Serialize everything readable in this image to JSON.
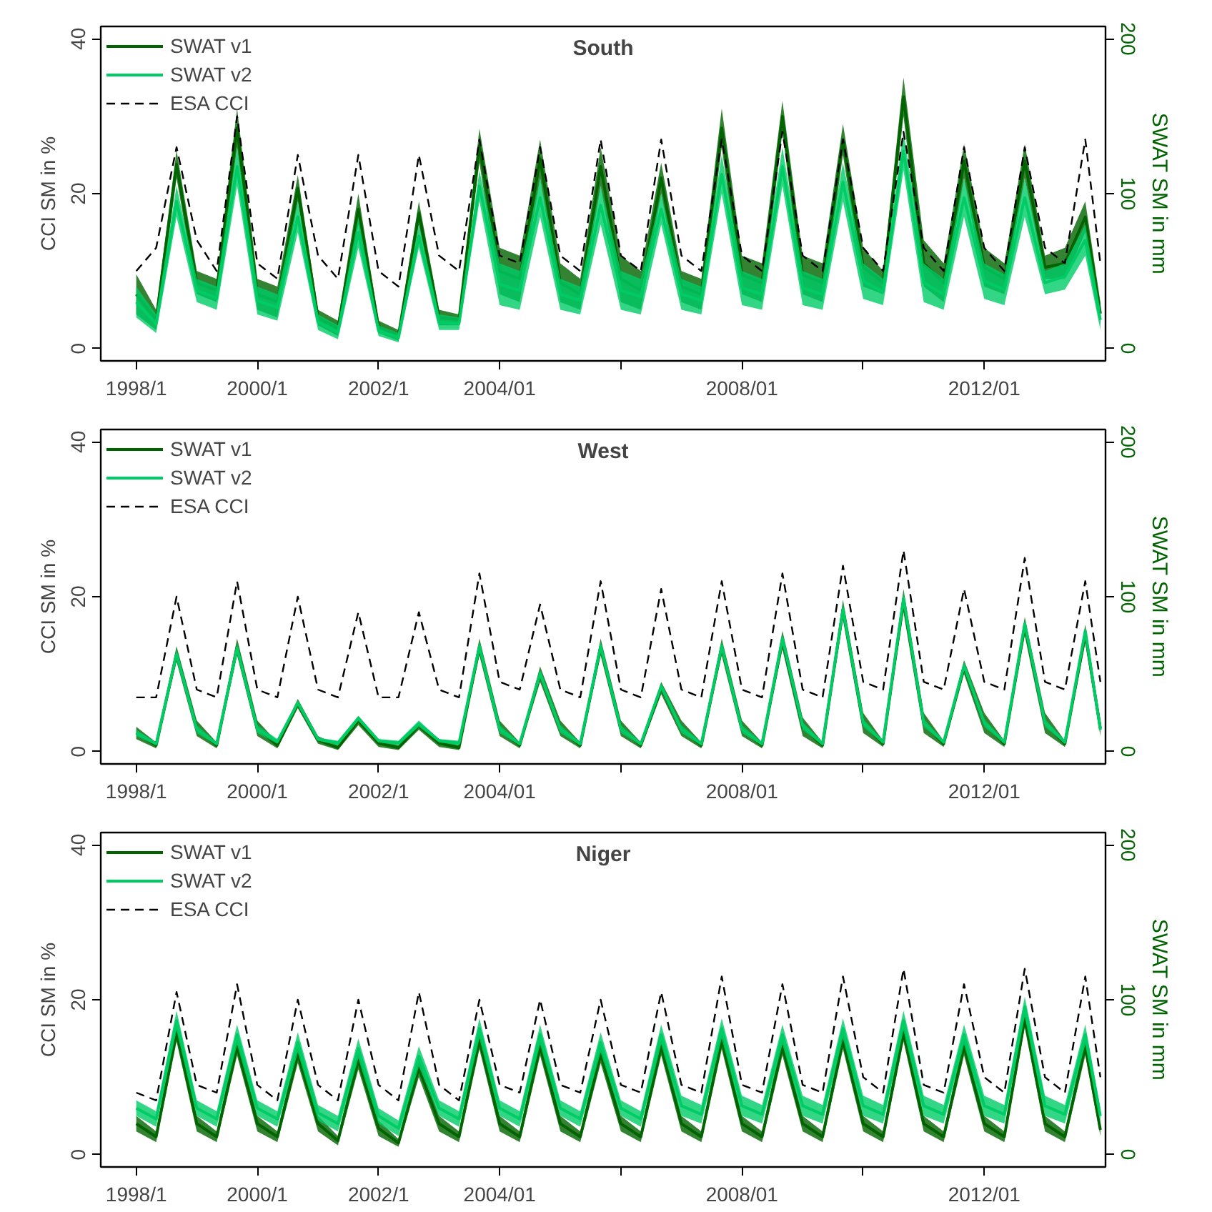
{
  "chart_data": [
    {
      "type": "line",
      "title": "South",
      "ylabel": "CCI SM in %",
      "y2label": "SWAT SM in mm",
      "x": [
        "1998-01",
        "1998-05",
        "1998-09",
        "1999-01",
        "1999-05",
        "1999-09",
        "2000-01",
        "2000-05",
        "2000-09",
        "2001-01",
        "2001-05",
        "2001-09",
        "2002-01",
        "2002-05",
        "2002-09",
        "2003-01",
        "2003-05",
        "2003-09",
        "2004-01",
        "2004-05",
        "2004-09",
        "2005-01",
        "2005-05",
        "2005-09",
        "2006-01",
        "2006-05",
        "2006-09",
        "2007-01",
        "2007-05",
        "2007-09",
        "2008-01",
        "2008-05",
        "2008-09",
        "2009-01",
        "2009-05",
        "2009-09",
        "2010-01",
        "2010-05",
        "2010-09",
        "2011-01",
        "2011-05",
        "2011-09",
        "2012-01",
        "2012-05",
        "2012-09",
        "2013-01",
        "2013-05",
        "2013-09",
        "2013-12"
      ],
      "xlim": [
        "1997-06",
        "2014-01"
      ],
      "xticks": [
        {
          "value": "1998-01",
          "label": "1998/1"
        },
        {
          "value": "2000-01",
          "label": "2000/1"
        },
        {
          "value": "2002-01",
          "label": "2002/1"
        },
        {
          "value": "2004-01",
          "label": "2004/01"
        },
        {
          "value": "2006-01",
          "label": null
        },
        {
          "value": "2008-01",
          "label": "2008/01"
        },
        {
          "value": "2010-01",
          "label": null
        },
        {
          "value": "2012-01",
          "label": "2012/01"
        }
      ],
      "ylim": [
        -1.6,
        41.6
      ],
      "yticks": [
        0,
        20,
        40
      ],
      "y2lim": [
        -8,
        208
      ],
      "y2ticks": [
        0,
        100,
        200
      ],
      "legend": "top left",
      "grid": false,
      "series": [
        {
          "name": "SWAT v1",
          "color": "#006400",
          "axis": "y2",
          "line_style": "solid",
          "values": [
            35,
            18.5,
            119,
            42.5,
            37.5,
            142.5,
            35,
            30,
            103.5,
            20,
            13,
            90,
            14,
            8.5,
            87.5,
            20,
            18.5,
            131,
            50,
            45,
            122.5,
            42.5,
            35,
            117.5,
            45,
            37.5,
            110,
            40,
            35,
            142.5,
            47.5,
            42.5,
            150,
            47.5,
            42.5,
            135,
            52.5,
            42.5,
            162.5,
            55,
            42.5,
            121,
            52.5,
            45,
            121,
            52.5,
            55,
            85,
            22.5
          ],
          "lower": [
            22,
            12,
            110,
            35,
            30,
            130,
            25,
            20,
            95,
            15,
            8,
            80,
            10,
            5,
            80,
            15,
            15,
            120,
            35,
            30,
            110,
            30,
            25,
            105,
            30,
            25,
            100,
            30,
            25,
            130,
            35,
            30,
            140,
            35,
            30,
            125,
            40,
            35,
            150,
            40,
            30,
            110,
            40,
            35,
            110,
            45,
            45,
            75,
            15
          ],
          "upper": [
            48,
            25,
            128,
            50,
            45,
            155,
            45,
            40,
            112,
            25,
            18,
            100,
            18,
            12,
            95,
            25,
            22,
            142,
            65,
            60,
            135,
            55,
            45,
            130,
            60,
            50,
            120,
            50,
            45,
            155,
            60,
            55,
            160,
            60,
            55,
            145,
            65,
            50,
            175,
            70,
            55,
            132,
            65,
            55,
            132,
            60,
            65,
            95,
            30
          ]
        },
        {
          "name": "SWAT v2",
          "color": "#00cc66",
          "axis": "y2",
          "line_style": "solid",
          "values": [
            30,
            16,
            95,
            37.5,
            32.5,
            117.5,
            31,
            26.5,
            85,
            17,
            10.5,
            75,
            11.5,
            7,
            72.5,
            17,
            16,
            105,
            41.5,
            37.5,
            97.5,
            35,
            31,
            92.5,
            37.5,
            33.5,
            90,
            35,
            31,
            112.5,
            39,
            35,
            117.5,
            39,
            35,
            107.5,
            43.5,
            36.5,
            127.5,
            42.5,
            35,
            97.5,
            43.5,
            38,
            97.5,
            42.5,
            46.5,
            70,
            18.5
          ],
          "lower": [
            20,
            10,
            85,
            30,
            25,
            105,
            22,
            18,
            75,
            12,
            6,
            65,
            8,
            4,
            65,
            12,
            12,
            95,
            28,
            25,
            85,
            25,
            22,
            80,
            25,
            22,
            80,
            25,
            22,
            100,
            28,
            25,
            105,
            28,
            25,
            95,
            32,
            28,
            115,
            30,
            25,
            85,
            32,
            28,
            85,
            35,
            38,
            60,
            12
          ],
          "upper": [
            40,
            22,
            105,
            45,
            40,
            130,
            40,
            35,
            95,
            22,
            15,
            85,
            15,
            10,
            80,
            22,
            20,
            115,
            55,
            50,
            110,
            45,
            40,
            105,
            50,
            45,
            100,
            45,
            40,
            125,
            50,
            45,
            130,
            50,
            45,
            120,
            55,
            45,
            140,
            55,
            45,
            110,
            55,
            48,
            110,
            50,
            55,
            80,
            25
          ]
        },
        {
          "name": "ESA CCI",
          "color": "#000000",
          "line_style": "dashed",
          "values": [
            10,
            13,
            26,
            14,
            10,
            30,
            11,
            9,
            25,
            12,
            9,
            25,
            10,
            8,
            25,
            12,
            10,
            27,
            12,
            11,
            26,
            12,
            10,
            27,
            12,
            10,
            27,
            12,
            10,
            27,
            12,
            10,
            28,
            12,
            10,
            27,
            13,
            10,
            28,
            13,
            10,
            26,
            13,
            10,
            26,
            13,
            11,
            27,
            11
          ]
        }
      ]
    },
    {
      "type": "line",
      "title": "West",
      "ylabel": "CCI SM in %",
      "y2label": "SWAT SM in mm",
      "x": [
        "1998-01",
        "1998-05",
        "1998-09",
        "1999-01",
        "1999-05",
        "1999-09",
        "2000-01",
        "2000-05",
        "2000-09",
        "2001-01",
        "2001-05",
        "2001-09",
        "2002-01",
        "2002-05",
        "2002-09",
        "2003-01",
        "2003-05",
        "2003-09",
        "2004-01",
        "2004-05",
        "2004-09",
        "2005-01",
        "2005-05",
        "2005-09",
        "2006-01",
        "2006-05",
        "2006-09",
        "2007-01",
        "2007-05",
        "2007-09",
        "2008-01",
        "2008-05",
        "2008-09",
        "2009-01",
        "2009-05",
        "2009-09",
        "2010-01",
        "2010-05",
        "2010-09",
        "2011-01",
        "2011-05",
        "2011-09",
        "2012-01",
        "2012-05",
        "2012-09",
        "2013-01",
        "2013-05",
        "2013-09",
        "2013-12"
      ],
      "xlim": [
        "1997-06",
        "2014-01"
      ],
      "xticks": [
        {
          "value": "1998-01",
          "label": "1998/1"
        },
        {
          "value": "2000-01",
          "label": "2000/1"
        },
        {
          "value": "2002-01",
          "label": "2002/1"
        },
        {
          "value": "2004-01",
          "label": "2004/01"
        },
        {
          "value": "2006-01",
          "label": null
        },
        {
          "value": "2008-01",
          "label": "2008/01"
        },
        {
          "value": "2010-01",
          "label": null
        },
        {
          "value": "2012-01",
          "label": "2012/01"
        }
      ],
      "ylim": [
        -1.6,
        41.6
      ],
      "yticks": [
        0,
        20,
        40
      ],
      "y2lim": [
        -8,
        208
      ],
      "y2ticks": [
        0,
        100,
        200
      ],
      "legend": "top left",
      "grid": false,
      "series": [
        {
          "name": "SWAT v1",
          "color": "#006400",
          "axis": "y2",
          "line_style": "solid",
          "values": [
            12,
            4,
            63,
            15,
            4,
            67.5,
            15,
            4,
            31,
            7.5,
            2.5,
            20,
            5.5,
            2.5,
            16.5,
            5.5,
            2.5,
            67.5,
            15,
            4,
            50,
            15,
            4,
            67.5,
            15,
            4,
            41,
            15,
            4,
            67.5,
            15,
            4,
            72,
            16,
            4,
            91.5,
            18.5,
            5,
            97.5,
            18.5,
            5,
            54.5,
            18.5,
            5,
            81,
            18.5,
            5,
            76,
            15
          ],
          "lower": [
            8,
            2,
            58,
            10,
            2,
            62,
            10,
            2,
            28,
            5,
            1,
            17,
            3,
            1,
            14,
            3,
            1,
            62,
            10,
            2,
            45,
            10,
            2,
            62,
            10,
            2,
            37,
            10,
            2,
            62,
            10,
            2,
            66,
            10,
            2,
            85,
            12,
            3,
            90,
            12,
            3,
            50,
            12,
            3,
            75,
            12,
            3,
            70,
            10
          ],
          "upper": [
            16,
            6,
            68,
            20,
            6,
            73,
            20,
            6,
            34,
            10,
            4,
            23,
            8,
            4,
            19,
            8,
            4,
            73,
            20,
            6,
            55,
            20,
            6,
            73,
            20,
            6,
            45,
            20,
            6,
            73,
            20,
            6,
            78,
            22,
            6,
            98,
            25,
            7,
            105,
            25,
            7,
            59,
            25,
            7,
            87,
            25,
            7,
            82,
            20
          ]
        },
        {
          "name": "SWAT v2",
          "color": "#00cc66",
          "axis": "y2",
          "line_style": "solid",
          "values": [
            12,
            5,
            63,
            14.5,
            5,
            67,
            14.5,
            6.5,
            31.5,
            8,
            5.5,
            21.5,
            7,
            5.5,
            18,
            7,
            5.5,
            68,
            14.5,
            5,
            50.5,
            14.5,
            5,
            68,
            14.5,
            5,
            42,
            14.5,
            5,
            68,
            14.5,
            5,
            73,
            16.5,
            5,
            92,
            18.5,
            6,
            99,
            18.5,
            6,
            55.5,
            18.5,
            6,
            82.5,
            18.5,
            6,
            78,
            14
          ],
          "lower": [
            10,
            4,
            60,
            12,
            4,
            64,
            12,
            5,
            30,
            7,
            4,
            20,
            6,
            4,
            16,
            6,
            4,
            65,
            12,
            4,
            48,
            12,
            4,
            65,
            12,
            4,
            40,
            12,
            4,
            65,
            12,
            4,
            70,
            14,
            4,
            88,
            16,
            5,
            95,
            16,
            5,
            53,
            16,
            5,
            80,
            16,
            5,
            76,
            12
          ],
          "upper": [
            14,
            6,
            66,
            17,
            6,
            70,
            17,
            8,
            33,
            9,
            7,
            23,
            8,
            7,
            20,
            8,
            7,
            71,
            17,
            6,
            53,
            17,
            6,
            71,
            17,
            6,
            44,
            17,
            6,
            71,
            17,
            6,
            76,
            19,
            6,
            96,
            21,
            7,
            103,
            21,
            7,
            58,
            21,
            7,
            85,
            21,
            7,
            80,
            16
          ]
        },
        {
          "name": "ESA CCI",
          "color": "#000000",
          "line_style": "dashed",
          "values": [
            7,
            7,
            20,
            8,
            7,
            22,
            8,
            7,
            20,
            8,
            7,
            18,
            7,
            7,
            18,
            8,
            7,
            23,
            9,
            8,
            19,
            8,
            7,
            22,
            8,
            7,
            21,
            8,
            7,
            22,
            8,
            7,
            23,
            8,
            7,
            24,
            9,
            8,
            26,
            9,
            8,
            21,
            9,
            8,
            25,
            9,
            8,
            22,
            9
          ]
        }
      ]
    },
    {
      "type": "line",
      "title": "Niger",
      "ylabel": "CCI SM in %",
      "y2label": "SWAT SM in mm",
      "x": [
        "1998-01",
        "1998-05",
        "1998-09",
        "1999-01",
        "1999-05",
        "1999-09",
        "2000-01",
        "2000-05",
        "2000-09",
        "2001-01",
        "2001-05",
        "2001-09",
        "2002-01",
        "2002-05",
        "2002-09",
        "2003-01",
        "2003-05",
        "2003-09",
        "2004-01",
        "2004-05",
        "2004-09",
        "2005-01",
        "2005-05",
        "2005-09",
        "2006-01",
        "2006-05",
        "2006-09",
        "2007-01",
        "2007-05",
        "2007-09",
        "2008-01",
        "2008-05",
        "2008-09",
        "2009-01",
        "2009-05",
        "2009-09",
        "2010-01",
        "2010-05",
        "2010-09",
        "2011-01",
        "2011-05",
        "2011-09",
        "2012-01",
        "2012-05",
        "2012-09",
        "2013-01",
        "2013-05",
        "2013-09",
        "2013-12"
      ],
      "xlim": [
        "1997-06",
        "2014-01"
      ],
      "xticks": [
        {
          "value": "1998-01",
          "label": "1998/1"
        },
        {
          "value": "2000-01",
          "label": "2000/1"
        },
        {
          "value": "2002-01",
          "label": "2002/1"
        },
        {
          "value": "2004-01",
          "label": "2004/01"
        },
        {
          "value": "2006-01",
          "label": null
        },
        {
          "value": "2008-01",
          "label": "2008/01"
        },
        {
          "value": "2010-01",
          "label": null
        },
        {
          "value": "2012-01",
          "label": "2012/01"
        }
      ],
      "ylim": [
        -1.6,
        41.6
      ],
      "yticks": [
        0,
        20,
        40
      ],
      "y2lim": [
        -8,
        208
      ],
      "y2ticks": [
        0,
        100,
        200
      ],
      "legend": "top left",
      "grid": false,
      "series": [
        {
          "name": "SWAT v1",
          "color": "#006400",
          "axis": "y2",
          "line_style": "solid",
          "values": [
            20,
            11.5,
            79,
            20,
            11.5,
            70,
            20,
            11.5,
            65,
            20,
            9,
            61,
            17,
            7.5,
            56,
            20,
            11.5,
            74,
            20,
            11.5,
            70,
            20,
            11.5,
            65,
            20,
            11.5,
            70,
            20,
            11.5,
            74,
            20,
            11.5,
            70,
            20,
            11.5,
            74,
            20,
            11.5,
            79,
            20,
            11.5,
            70,
            20,
            11.5,
            88,
            20,
            11.5,
            70,
            16
          ],
          "lower": [
            15,
            8,
            73,
            15,
            8,
            64,
            15,
            8,
            59,
            15,
            6,
            55,
            12,
            5,
            50,
            15,
            8,
            68,
            15,
            8,
            64,
            15,
            8,
            59,
            15,
            8,
            64,
            15,
            8,
            68,
            15,
            8,
            64,
            15,
            8,
            68,
            15,
            8,
            73,
            15,
            8,
            64,
            15,
            8,
            82,
            15,
            8,
            64,
            12
          ],
          "upper": [
            25,
            15,
            85,
            25,
            15,
            76,
            25,
            15,
            71,
            25,
            12,
            67,
            22,
            10,
            62,
            25,
            15,
            80,
            25,
            15,
            76,
            25,
            15,
            71,
            25,
            15,
            76,
            25,
            15,
            80,
            25,
            15,
            76,
            25,
            15,
            80,
            25,
            15,
            85,
            25,
            15,
            76,
            25,
            15,
            94,
            25,
            15,
            76,
            20
          ]
        },
        {
          "name": "SWAT v2",
          "color": "#00cc66",
          "axis": "y2",
          "line_style": "solid",
          "values": [
            30,
            23,
            86.5,
            30,
            23,
            77.5,
            30,
            23,
            72.5,
            27,
            20,
            68.5,
            25,
            17,
            63.5,
            30,
            23,
            81.5,
            30,
            23,
            77.5,
            30,
            23,
            72.5,
            30,
            23,
            77.5,
            31.5,
            26,
            81.5,
            31.5,
            26,
            77.5,
            31.5,
            26,
            81.5,
            31.5,
            26,
            86.5,
            31.5,
            26,
            77.5,
            31.5,
            26,
            95.5,
            31.5,
            26,
            77.5,
            25
          ],
          "lower": [
            25,
            18,
            80,
            25,
            18,
            71,
            25,
            18,
            66,
            22,
            15,
            62,
            20,
            12,
            57,
            25,
            18,
            75,
            25,
            18,
            71,
            25,
            18,
            66,
            25,
            18,
            71,
            25,
            20,
            75,
            25,
            20,
            71,
            25,
            20,
            75,
            25,
            20,
            80,
            25,
            20,
            71,
            25,
            20,
            89,
            25,
            20,
            71,
            20
          ],
          "upper": [
            35,
            28,
            93,
            35,
            28,
            84,
            35,
            28,
            79,
            32,
            25,
            75,
            30,
            22,
            70,
            35,
            28,
            88,
            35,
            28,
            84,
            35,
            28,
            79,
            35,
            28,
            84,
            38,
            32,
            88,
            38,
            32,
            84,
            38,
            32,
            88,
            38,
            32,
            93,
            38,
            32,
            84,
            38,
            32,
            102,
            38,
            32,
            84,
            30
          ]
        },
        {
          "name": "ESA CCI",
          "color": "#000000",
          "line_style": "dashed",
          "values": [
            8,
            7,
            21,
            9,
            8,
            22,
            9,
            7,
            20,
            9,
            7,
            20,
            9,
            7,
            21,
            9,
            7,
            20,
            9,
            8,
            20,
            9,
            8,
            20,
            9,
            8,
            21,
            9,
            8,
            23,
            9,
            8,
            22,
            9,
            8,
            23,
            10,
            8,
            24,
            9,
            8,
            22,
            10,
            8,
            24,
            10,
            8,
            23,
            10
          ]
        }
      ]
    }
  ]
}
